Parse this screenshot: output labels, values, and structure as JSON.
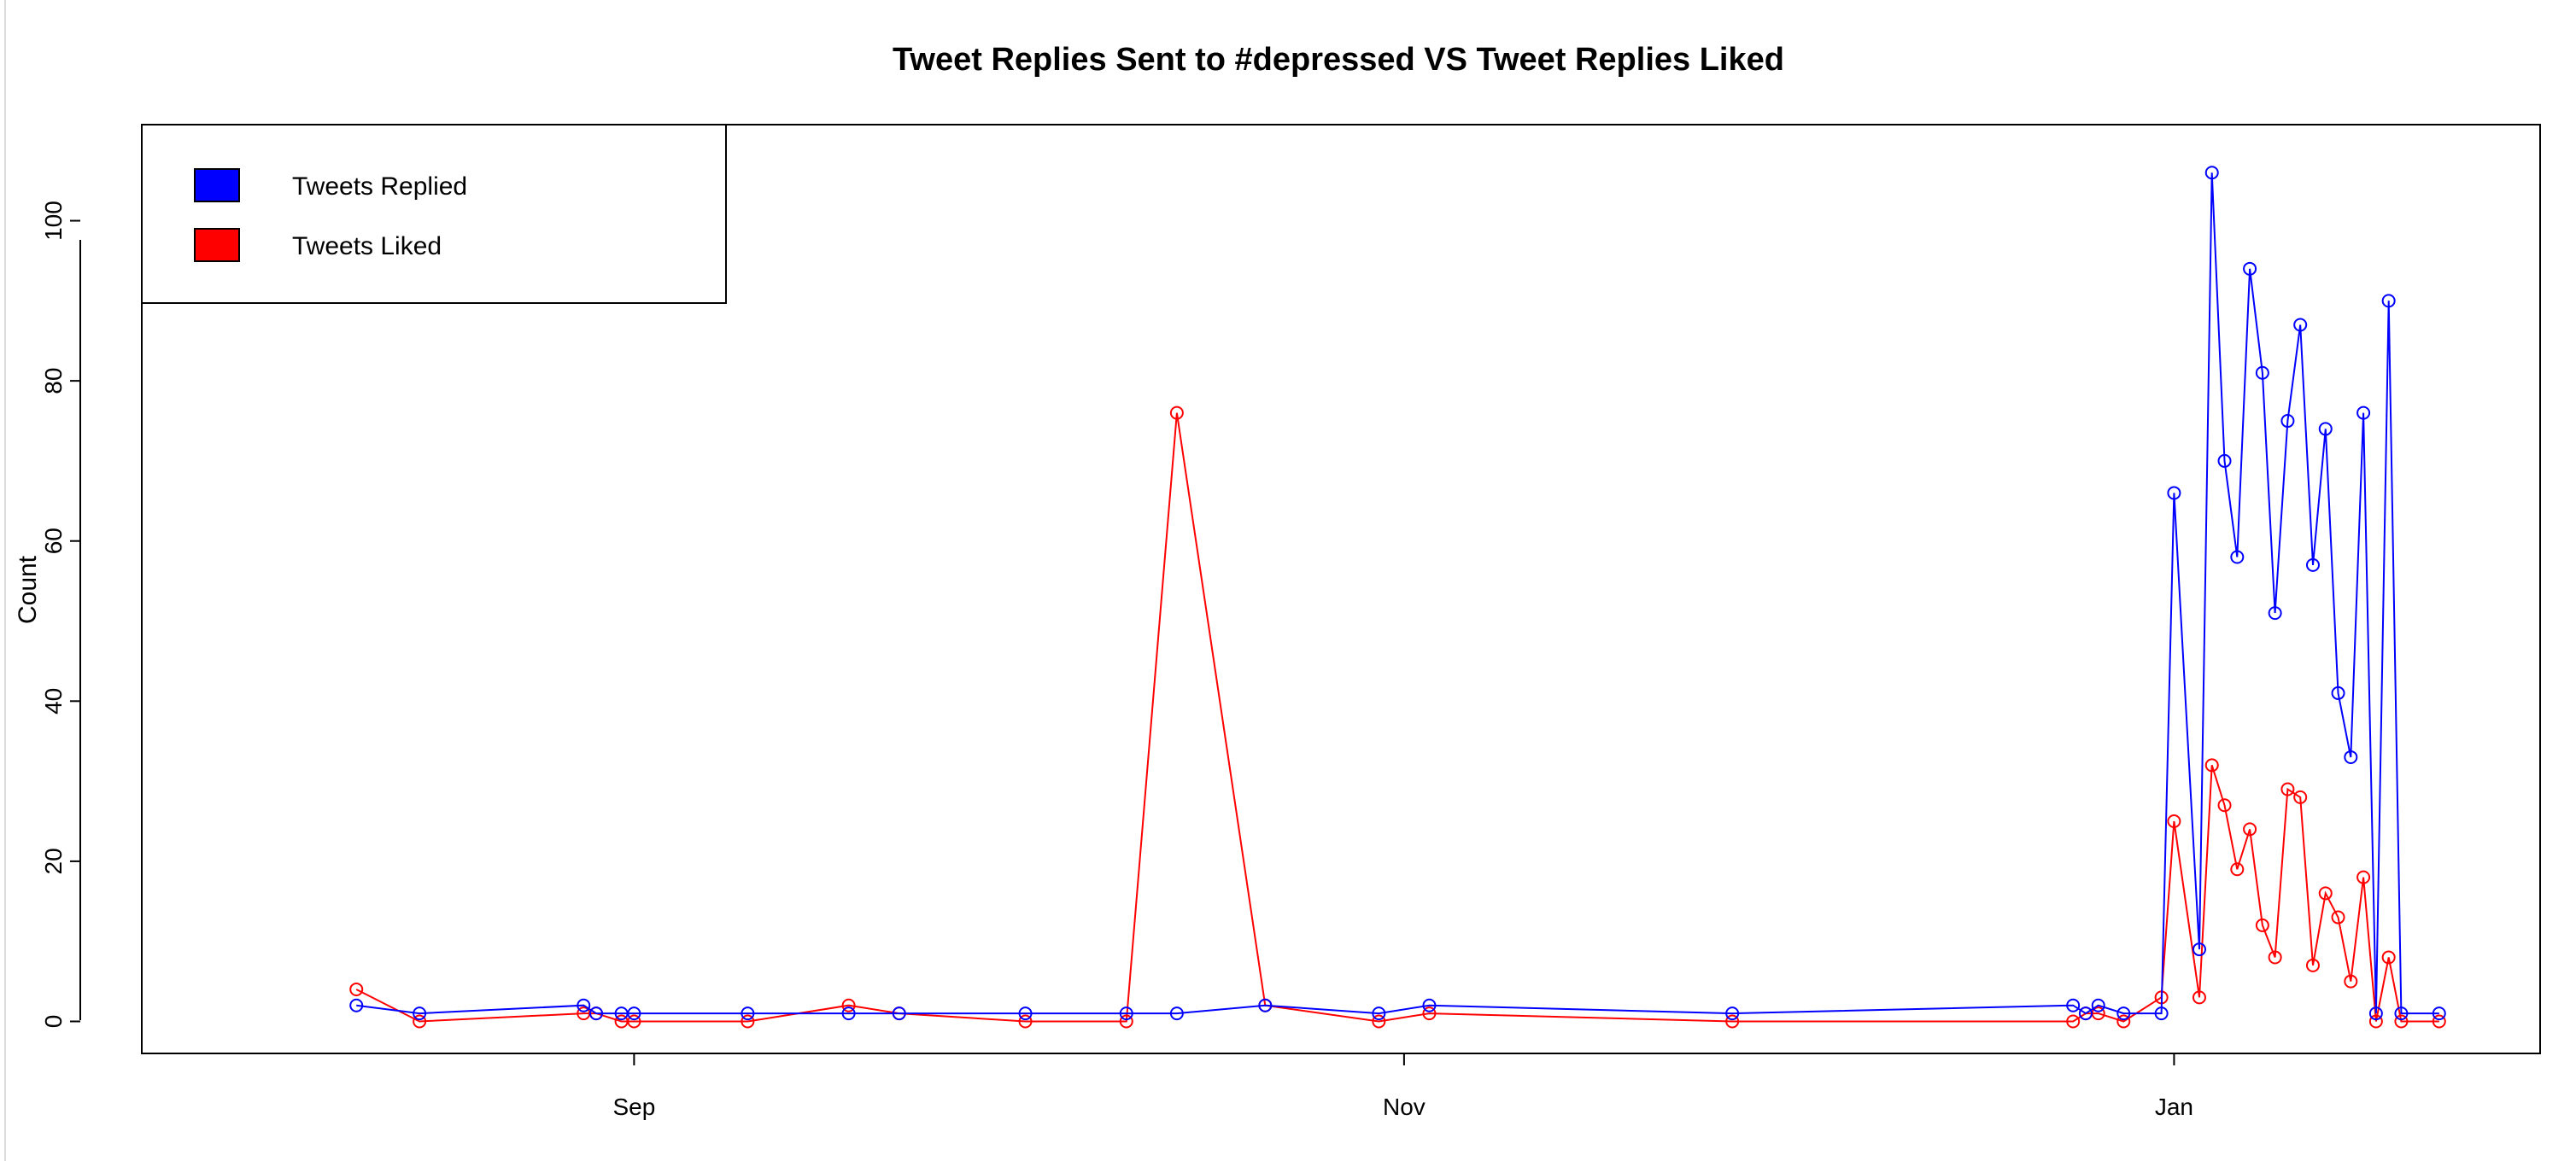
{
  "chart_data": {
    "type": "line",
    "title": "Tweet Replies Sent to #depressed VS Tweet Replies Liked",
    "xlabel": "",
    "ylabel": "Count",
    "ylim": [
      -4,
      112
    ],
    "xlim": [
      "2022-07-24",
      "2023-01-30"
    ],
    "grid": false,
    "legend_position": "top-left",
    "x_ticks": [
      {
        "date": "2022-09-01",
        "label": "Sep"
      },
      {
        "date": "2022-11-01",
        "label": "Nov"
      },
      {
        "date": "2023-01-01",
        "label": "Jan"
      }
    ],
    "y_ticks": [
      0,
      20,
      40,
      60,
      80,
      100
    ],
    "series": [
      {
        "name": "Tweets Replied",
        "color": "#0000ff",
        "points": [
          [
            "2022-08-10",
            2
          ],
          [
            "2022-08-15",
            1
          ],
          [
            "2022-08-28",
            2
          ],
          [
            "2022-08-29",
            1
          ],
          [
            "2022-08-31",
            1
          ],
          [
            "2022-09-01",
            1
          ],
          [
            "2022-09-10",
            1
          ],
          [
            "2022-09-18",
            1
          ],
          [
            "2022-09-22",
            1
          ],
          [
            "2022-10-02",
            1
          ],
          [
            "2022-10-10",
            1
          ],
          [
            "2022-10-14",
            1
          ],
          [
            "2022-10-21",
            2
          ],
          [
            "2022-10-30",
            1
          ],
          [
            "2022-11-03",
            2
          ],
          [
            "2022-11-27",
            1
          ],
          [
            "2022-12-24",
            2
          ],
          [
            "2022-12-25",
            1
          ],
          [
            "2022-12-26",
            2
          ],
          [
            "2022-12-28",
            1
          ],
          [
            "2022-12-31",
            1
          ],
          [
            "2023-01-01",
            66
          ],
          [
            "2023-01-03",
            9
          ],
          [
            "2023-01-04",
            106
          ],
          [
            "2023-01-05",
            70
          ],
          [
            "2023-01-06",
            58
          ],
          [
            "2023-01-07",
            94
          ],
          [
            "2023-01-08",
            81
          ],
          [
            "2023-01-09",
            51
          ],
          [
            "2023-01-10",
            75
          ],
          [
            "2023-01-11",
            87
          ],
          [
            "2023-01-12",
            57
          ],
          [
            "2023-01-13",
            74
          ],
          [
            "2023-01-14",
            41
          ],
          [
            "2023-01-15",
            33
          ],
          [
            "2023-01-16",
            76
          ],
          [
            "2023-01-17",
            1
          ],
          [
            "2023-01-18",
            90
          ],
          [
            "2023-01-19",
            1
          ],
          [
            "2023-01-22",
            1
          ]
        ]
      },
      {
        "name": "Tweets Liked",
        "color": "#ff0000",
        "points": [
          [
            "2022-08-10",
            4
          ],
          [
            "2022-08-15",
            0
          ],
          [
            "2022-08-28",
            1
          ],
          [
            "2022-08-29",
            1
          ],
          [
            "2022-08-31",
            0
          ],
          [
            "2022-09-01",
            0
          ],
          [
            "2022-09-10",
            0
          ],
          [
            "2022-09-18",
            2
          ],
          [
            "2022-09-22",
            1
          ],
          [
            "2022-10-02",
            0
          ],
          [
            "2022-10-10",
            0
          ],
          [
            "2022-10-14",
            76
          ],
          [
            "2022-10-21",
            2
          ],
          [
            "2022-10-30",
            0
          ],
          [
            "2022-11-03",
            1
          ],
          [
            "2022-11-27",
            0
          ],
          [
            "2022-12-24",
            0
          ],
          [
            "2022-12-25",
            1
          ],
          [
            "2022-12-26",
            1
          ],
          [
            "2022-12-28",
            0
          ],
          [
            "2022-12-31",
            3
          ],
          [
            "2023-01-01",
            25
          ],
          [
            "2023-01-03",
            3
          ],
          [
            "2023-01-04",
            32
          ],
          [
            "2023-01-05",
            27
          ],
          [
            "2023-01-06",
            19
          ],
          [
            "2023-01-07",
            24
          ],
          [
            "2023-01-08",
            12
          ],
          [
            "2023-01-09",
            8
          ],
          [
            "2023-01-10",
            29
          ],
          [
            "2023-01-11",
            28
          ],
          [
            "2023-01-12",
            7
          ],
          [
            "2023-01-13",
            16
          ],
          [
            "2023-01-14",
            13
          ],
          [
            "2023-01-15",
            5
          ],
          [
            "2023-01-16",
            18
          ],
          [
            "2023-01-17",
            0
          ],
          [
            "2023-01-18",
            8
          ],
          [
            "2023-01-19",
            0
          ],
          [
            "2023-01-22",
            0
          ]
        ]
      }
    ]
  }
}
